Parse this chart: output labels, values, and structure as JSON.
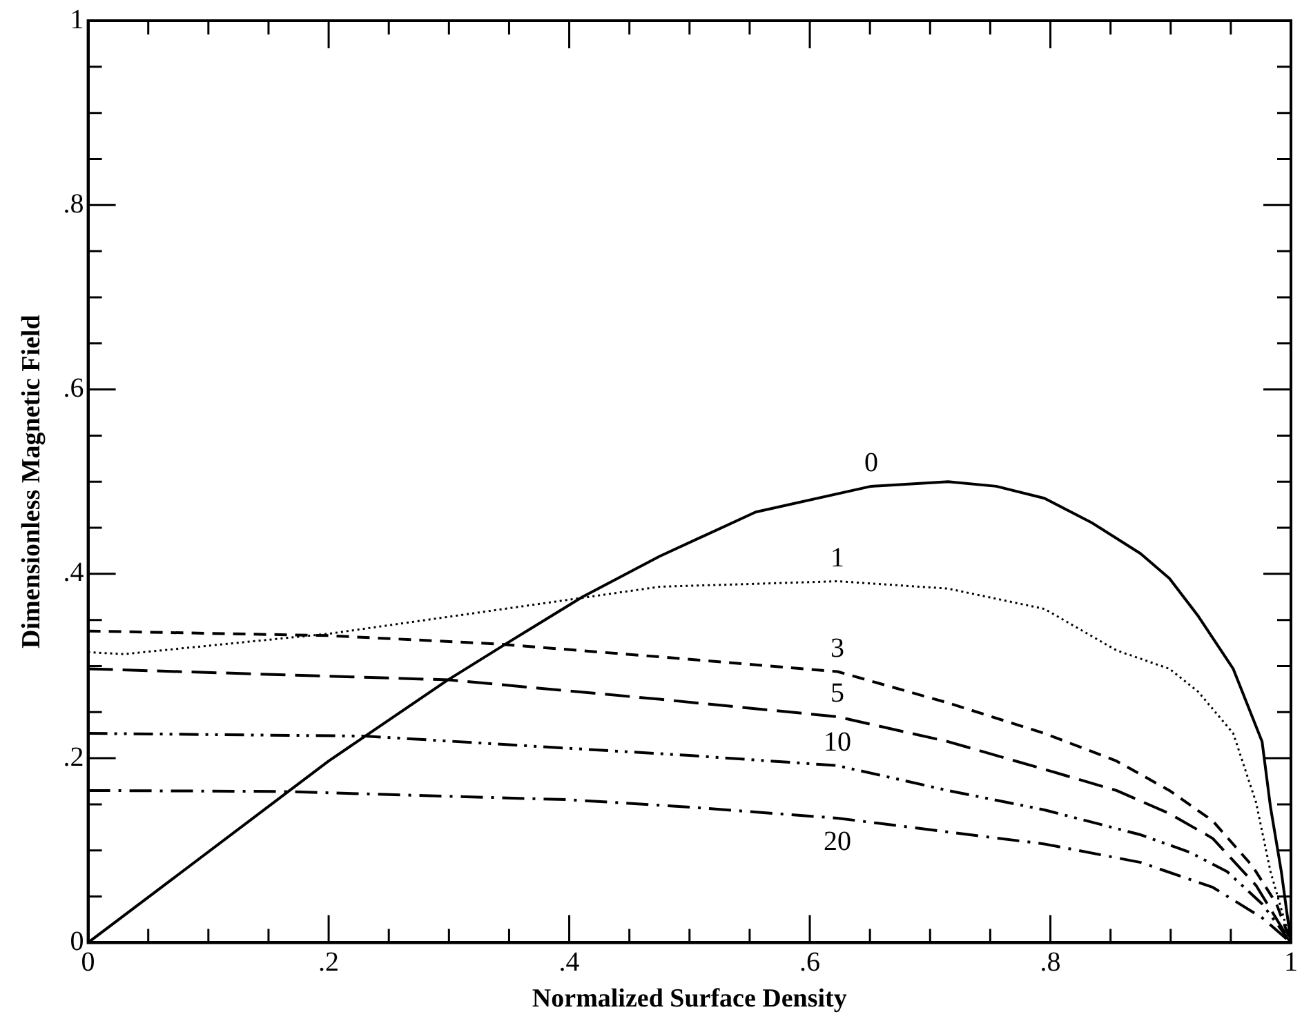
{
  "chart_data": {
    "type": "line",
    "xlabel": "Normalized Surface Density",
    "ylabel": "Dimensionless Magnetic Field",
    "xlim": [
      0,
      1
    ],
    "ylim": [
      0,
      1
    ],
    "xticks": [
      0,
      {
        "value": 0.05,
        "label": null
      },
      {
        "value": 0.1,
        "label": null
      },
      {
        "value": 0.15,
        "label": null
      },
      {
        "value": 0.2,
        "label": ".2"
      },
      {
        "value": 0.25,
        "label": null
      },
      {
        "value": 0.3,
        "label": null
      },
      {
        "value": 0.35,
        "label": null
      },
      {
        "value": 0.4,
        "label": ".4"
      },
      {
        "value": 0.45,
        "label": null
      },
      {
        "value": 0.5,
        "label": null
      },
      {
        "value": 0.55,
        "label": null
      },
      {
        "value": 0.6,
        "label": ".6"
      },
      {
        "value": 0.65,
        "label": null
      },
      {
        "value": 0.7,
        "label": null
      },
      {
        "value": 0.75,
        "label": null
      },
      {
        "value": 0.8,
        "label": ".8"
      },
      {
        "value": 0.85,
        "label": null
      },
      {
        "value": 0.9,
        "label": null
      },
      {
        "value": 0.95,
        "label": null
      },
      1
    ],
    "yticks": [
      0,
      {
        "value": 0.05,
        "label": null
      },
      {
        "value": 0.1,
        "label": null
      },
      {
        "value": 0.15,
        "label": null
      },
      {
        "value": 0.2,
        "label": ".2"
      },
      {
        "value": 0.25,
        "label": null
      },
      {
        "value": 0.3,
        "label": null
      },
      {
        "value": 0.35,
        "label": null
      },
      {
        "value": 0.4,
        "label": ".4"
      },
      {
        "value": 0.45,
        "label": null
      },
      {
        "value": 0.5,
        "label": null
      },
      {
        "value": 0.55,
        "label": null
      },
      {
        "value": 0.6,
        "label": ".6"
      },
      {
        "value": 0.65,
        "label": null
      },
      {
        "value": 0.7,
        "label": null
      },
      {
        "value": 0.75,
        "label": null
      },
      {
        "value": 0.8,
        "label": ".8"
      },
      {
        "value": 0.85,
        "label": null
      },
      {
        "value": 0.9,
        "label": null
      },
      {
        "value": 0.95,
        "label": null
      },
      1
    ],
    "marker": "none",
    "grid": false,
    "legend": false,
    "series": [
      {
        "name": "0",
        "color": "#000000",
        "line_style": "solid",
        "x": [
          0,
          0.2,
          0.298,
          0.351,
          0.411,
          0.475,
          0.555,
          0.651,
          0.715,
          0.755,
          0.795,
          0.835,
          0.875,
          0.899,
          0.923,
          0.952,
          0.976,
          0.983,
          0.992,
          1
        ],
        "values": [
          0,
          0.197,
          0.284,
          0.327,
          0.375,
          0.419,
          0.467,
          0.495,
          0.5,
          0.495,
          0.482,
          0.455,
          0.422,
          0.395,
          0.354,
          0.297,
          0.218,
          0.147,
          0.077,
          0
        ]
      },
      {
        "name": "1",
        "color": "#000000",
        "line_style": "dotted",
        "x": [
          0,
          0.03,
          0.2,
          0.4,
          0.475,
          0.623,
          0.715,
          0.795,
          0.855,
          0.899,
          0.923,
          0.952,
          0.971,
          0.983,
          1
        ],
        "values": [
          0.315,
          0.313,
          0.335,
          0.372,
          0.386,
          0.392,
          0.384,
          0.362,
          0.317,
          0.297,
          0.272,
          0.227,
          0.152,
          0.077,
          0
        ]
      },
      {
        "name": "3",
        "color": "#000000",
        "line_style": "dashed",
        "x": [
          0,
          0.2,
          0.34,
          0.475,
          0.623,
          0.715,
          0.795,
          0.855,
          0.899,
          0.935,
          0.968,
          0.988,
          1
        ],
        "values": [
          0.338,
          0.333,
          0.324,
          0.31,
          0.294,
          0.26,
          0.227,
          0.197,
          0.165,
          0.132,
          0.083,
          0.042,
          0
        ]
      },
      {
        "name": "5",
        "color": "#000000",
        "line_style": "dashed",
        "x": [
          0,
          0.3,
          0.475,
          0.623,
          0.715,
          0.795,
          0.855,
          0.899,
          0.935,
          0.971,
          1
        ],
        "values": [
          0.297,
          0.285,
          0.264,
          0.245,
          0.218,
          0.188,
          0.165,
          0.14,
          0.113,
          0.062,
          0
        ]
      },
      {
        "name": "10",
        "color": "#000000",
        "line_style": "dashed",
        "x": [
          0,
          0.23,
          0.5,
          0.623,
          0.715,
          0.795,
          0.875,
          0.916,
          0.947,
          0.976,
          1
        ],
        "values": [
          0.227,
          0.224,
          0.203,
          0.192,
          0.165,
          0.144,
          0.117,
          0.098,
          0.077,
          0.042,
          0
        ]
      },
      {
        "name": "20",
        "color": "#000000",
        "line_style": "dashed",
        "x": [
          0,
          0.16,
          0.4,
          0.5,
          0.623,
          0.715,
          0.795,
          0.875,
          0.935,
          0.976,
          1
        ],
        "values": [
          0.165,
          0.164,
          0.155,
          0.147,
          0.135,
          0.12,
          0.107,
          0.087,
          0.06,
          0.027,
          0
        ]
      }
    ]
  }
}
